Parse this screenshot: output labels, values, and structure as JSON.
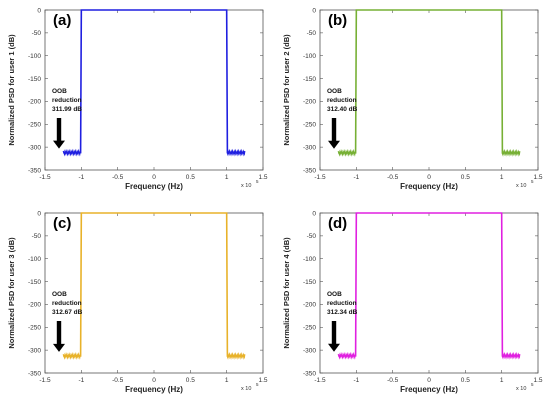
{
  "chart_data": [
    {
      "type": "line",
      "panel_label": "(a)",
      "color": "#1f1fe0",
      "xlabel": "Frequency (Hz)",
      "ylabel": "Normalized PSD for user 1 (dB)",
      "x_multiplier": "x 10",
      "x_multiplier_exp": "5",
      "xlim": [
        -1.5,
        1.5
      ],
      "ylim": [
        -350,
        0
      ],
      "xticks": [
        "-1.5",
        "-1",
        "-0.5",
        "0",
        "0.5",
        "1",
        "1.5"
      ],
      "yticks": [
        "0",
        "-50",
        "-100",
        "-150",
        "-200",
        "-250",
        "-300",
        "-350"
      ],
      "annotation": [
        "OOB",
        "reduction",
        "311.99 dB"
      ],
      "series": [
        {
          "x": [
            -1.25,
            -1.05,
            -1.01,
            -1.0,
            1.0,
            1.01,
            1.05,
            1.25
          ],
          "y": [
            -311.99,
            -311.99,
            -311.99,
            0,
            0,
            -311.99,
            -311.99,
            -311.99
          ]
        }
      ]
    },
    {
      "type": "line",
      "panel_label": "(b)",
      "color": "#77b035",
      "xlabel": "Frequency (Hz)",
      "ylabel": "Normalized PSD for user 2 (dB)",
      "x_multiplier": "x 10",
      "x_multiplier_exp": "5",
      "xlim": [
        -1.5,
        1.5
      ],
      "ylim": [
        -350,
        0
      ],
      "xticks": [
        "-1.5",
        "-1",
        "-0.5",
        "0",
        "0.5",
        "1",
        "1.5"
      ],
      "yticks": [
        "0",
        "-50",
        "-100",
        "-150",
        "-200",
        "-250",
        "-300",
        "-350"
      ],
      "annotation": [
        "OOB",
        "reduction",
        "312.40 dB"
      ],
      "series": [
        {
          "x": [
            -1.25,
            -1.05,
            -1.01,
            -1.0,
            1.0,
            1.01,
            1.05,
            1.25
          ],
          "y": [
            -312.4,
            -312.4,
            -312.4,
            0,
            0,
            -312.4,
            -312.4,
            -312.4
          ]
        }
      ]
    },
    {
      "type": "line",
      "panel_label": "(c)",
      "color": "#e8b22a",
      "xlabel": "Frequency (Hz)",
      "ylabel": "Normalized PSD for user 3 (dB)",
      "x_multiplier": "x 10",
      "x_multiplier_exp": "5",
      "xlim": [
        -1.5,
        1.5
      ],
      "ylim": [
        -350,
        0
      ],
      "xticks": [
        "-1.5",
        "-1",
        "-0.5",
        "0",
        "0.5",
        "1",
        "1.5"
      ],
      "yticks": [
        "0",
        "-50",
        "-100",
        "-150",
        "-200",
        "-250",
        "-300",
        "-350"
      ],
      "annotation": [
        "OOB",
        "reduction",
        "312.67 dB"
      ],
      "series": [
        {
          "x": [
            -1.25,
            -1.05,
            -1.01,
            -1.0,
            1.0,
            1.01,
            1.05,
            1.25
          ],
          "y": [
            -312.67,
            -312.67,
            -312.67,
            0,
            0,
            -312.67,
            -312.67,
            -312.67
          ]
        }
      ]
    },
    {
      "type": "line",
      "panel_label": "(d)",
      "color": "#e020e0",
      "xlabel": "Frequency (Hz)",
      "ylabel": "Normalized PSD for user 4 (dB)",
      "x_multiplier": "x 10",
      "x_multiplier_exp": "5",
      "xlim": [
        -1.5,
        1.5
      ],
      "ylim": [
        -350,
        0
      ],
      "xticks": [
        "-1.5",
        "-1",
        "-0.5",
        "0",
        "0.5",
        "1",
        "1.5"
      ],
      "yticks": [
        "0",
        "-50",
        "-100",
        "-150",
        "-200",
        "-250",
        "-300",
        "-350"
      ],
      "annotation": [
        "OOB",
        "reduction",
        "312.34 dB"
      ],
      "series": [
        {
          "x": [
            -1.25,
            -1.05,
            -1.01,
            -1.0,
            1.0,
            1.01,
            1.05,
            1.25
          ],
          "y": [
            -312.34,
            -312.34,
            -312.34,
            0,
            0,
            -312.34,
            -312.34,
            -312.34
          ]
        }
      ]
    }
  ]
}
